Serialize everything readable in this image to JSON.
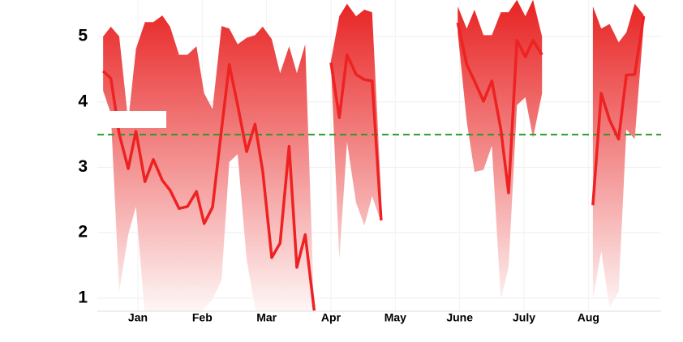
{
  "chart_data": {
    "type": "range_line",
    "x": [
      0.46,
      0.58,
      0.71,
      0.85,
      0.97,
      1.11,
      1.24,
      1.38,
      1.5,
      1.64,
      1.77,
      1.91,
      2.03,
      2.16,
      2.3,
      2.42,
      2.55,
      2.69,
      2.82,
      2.94,
      3.08,
      3.21,
      3.35,
      3.47,
      3.6,
      3.74,
      null,
      4.0,
      4.13,
      4.25,
      4.39,
      4.52,
      4.64,
      4.78,
      null,
      5.97,
      6.11,
      6.23,
      6.37,
      6.5,
      6.64,
      6.76,
      6.89,
      7.02,
      7.14,
      7.28,
      null,
      8.07,
      8.2,
      8.33,
      8.47,
      8.59,
      8.72,
      8.86
    ],
    "line": {
      "color": "#ee2222",
      "values": [
        4.47,
        4.36,
        3.51,
        2.98,
        3.55,
        2.78,
        3.12,
        2.8,
        2.65,
        2.37,
        2.4,
        2.63,
        2.14,
        2.39,
        3.58,
        4.57,
        3.95,
        3.24,
        3.66,
        2.94,
        1.62,
        1.84,
        3.32,
        1.47,
        1.97,
        0.81,
        null,
        4.6,
        3.76,
        4.72,
        4.42,
        4.34,
        4.32,
        2.19,
        null,
        5.21,
        4.57,
        4.32,
        4.01,
        4.32,
        3.58,
        2.61,
        4.94,
        4.69,
        4.94,
        4.72,
        null,
        2.42,
        4.13,
        3.72,
        3.43,
        4.41,
        4.42,
        5.31
      ]
    },
    "band": {
      "color": "#e82222",
      "high": [
        5.0,
        5.15,
        5.0,
        3.7,
        4.81,
        5.22,
        5.22,
        5.32,
        5.15,
        4.72,
        4.72,
        4.85,
        4.13,
        3.89,
        5.16,
        5.12,
        4.88,
        4.98,
        5.02,
        5.15,
        4.96,
        4.44,
        4.85,
        4.44,
        4.88,
        0.81,
        null,
        4.63,
        5.31,
        5.5,
        5.31,
        5.41,
        5.37,
        2.59,
        null,
        5.46,
        5.12,
        5.41,
        5.02,
        5.02,
        5.37,
        5.37,
        5.56,
        5.31,
        5.56,
        5.0,
        null,
        5.46,
        5.12,
        5.19,
        4.91,
        5.06,
        5.5,
        5.33
      ],
      "low": [
        4.17,
        3.82,
        1.1,
        1.97,
        2.4,
        0.73,
        0.6,
        0.73,
        0.65,
        0.6,
        0.65,
        0.73,
        0.85,
        0.98,
        1.28,
        3.08,
        3.2,
        1.59,
        0.85,
        0.73,
        0.79,
        0.65,
        0.65,
        0.79,
        0.73,
        0.65,
        null,
        4.57,
        1.59,
        3.39,
        2.46,
        2.11,
        2.56,
        2.15,
        null,
        5.06,
        3.7,
        2.93,
        2.96,
        3.33,
        0.98,
        1.47,
        3.95,
        4.07,
        3.45,
        4.13,
        null,
        0.98,
        1.72,
        0.85,
        1.1,
        3.58,
        3.43,
        5.19
      ]
    },
    "reference_line": {
      "value": 3.5,
      "color": "#2a9a2a"
    },
    "xlim": [
      0.37,
      9.13
    ],
    "xticks": [
      {
        "value": 1,
        "label": "Jan"
      },
      {
        "value": 2,
        "label": "Feb"
      },
      {
        "value": 3,
        "label": "Mar"
      },
      {
        "value": 4,
        "label": "Apr"
      },
      {
        "value": 5,
        "label": "May"
      },
      {
        "value": 6,
        "label": "June"
      },
      {
        "value": 7,
        "label": "July"
      },
      {
        "value": 8,
        "label": "Aug"
      }
    ],
    "ylim": [
      0.8,
      5.55
    ],
    "yticks": [
      1,
      2,
      3,
      4,
      5
    ],
    "grid": true
  }
}
